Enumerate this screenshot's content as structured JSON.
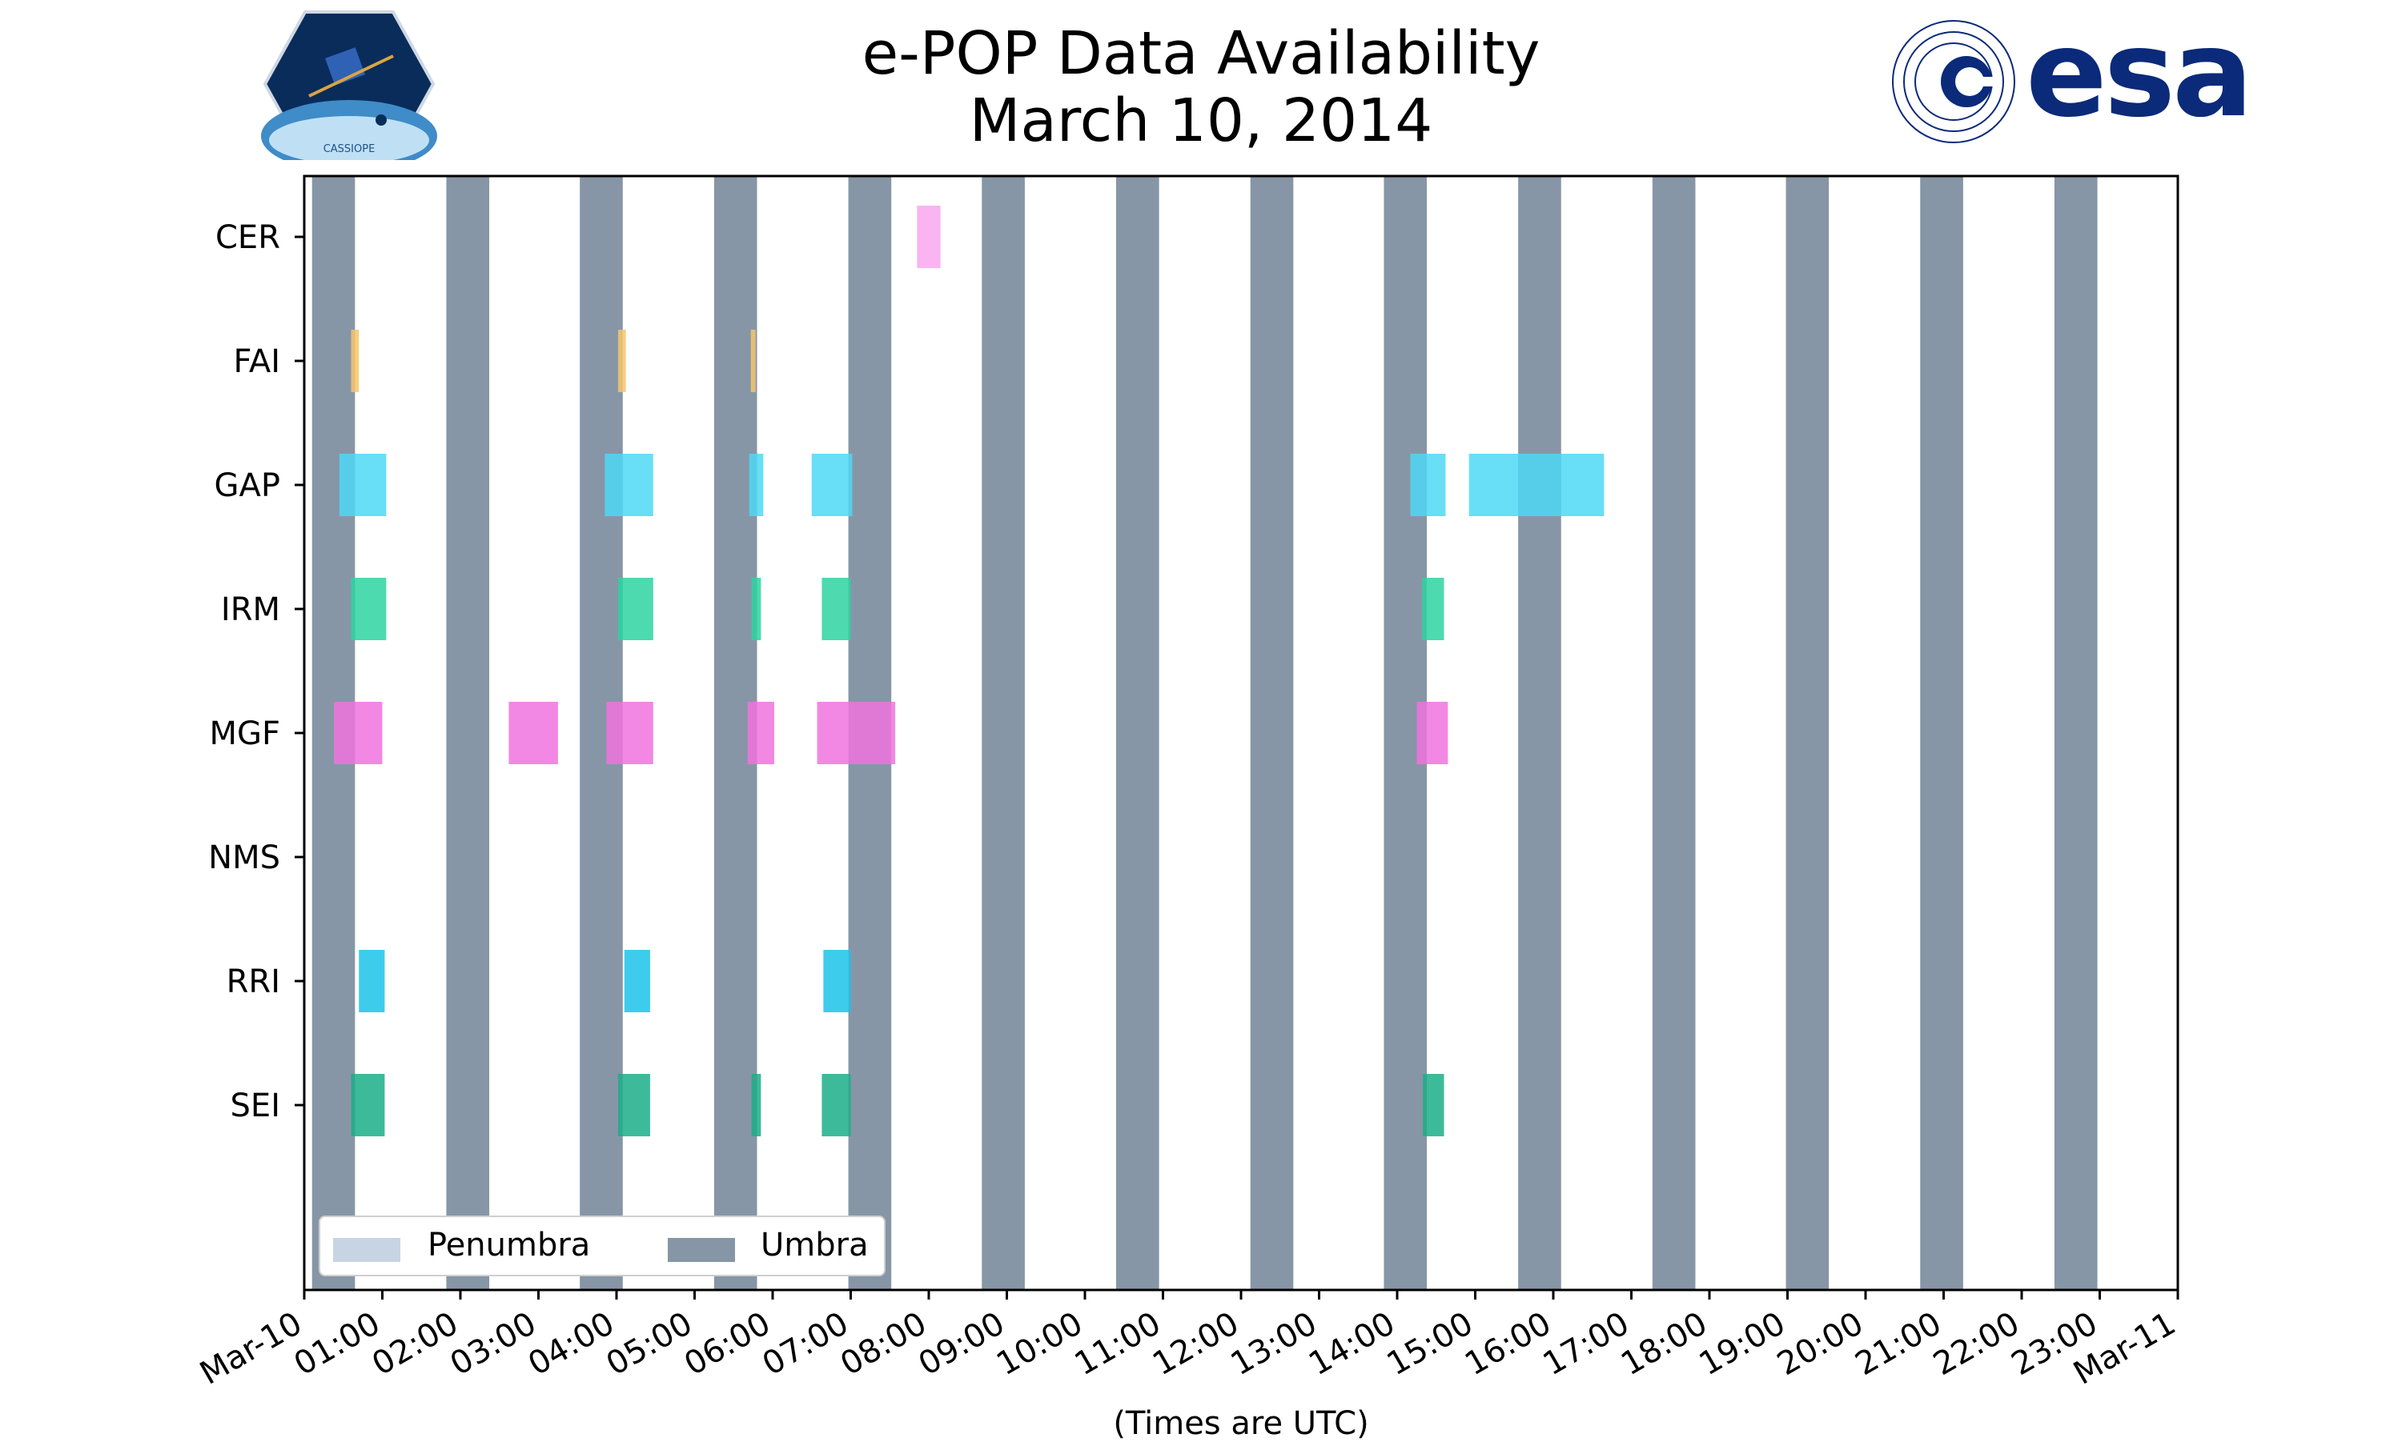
{
  "header": {
    "title_line1": "e-POP Data Availability",
    "title_line2": "March 10, 2014",
    "left_logo_text": "CASSIOPE",
    "right_logo_text": "esa"
  },
  "colors": {
    "umbra": "#8696a6",
    "penumbra": "#c7d4e3",
    "CER": "#f8a7ee",
    "FAI": "#f6c56c",
    "GAP": "#4dd8f6",
    "IRM": "#2dd3a0",
    "MGF": "#f073de",
    "RRI": "#1cc3ea",
    "SEI": "#1bae87"
  },
  "chart_data": {
    "type": "timeline",
    "title": "e-POP Data Availability March 10, 2014",
    "xlabel": "(Times are UTC)",
    "ylabel": "",
    "xlim_hours": [
      0,
      24
    ],
    "xtick_labels": [
      "Mar-10",
      "01:00",
      "02:00",
      "03:00",
      "04:00",
      "05:00",
      "06:00",
      "07:00",
      "08:00",
      "09:00",
      "10:00",
      "11:00",
      "12:00",
      "13:00",
      "14:00",
      "15:00",
      "16:00",
      "17:00",
      "18:00",
      "19:00",
      "20:00",
      "21:00",
      "22:00",
      "23:00",
      "Mar-11"
    ],
    "instruments": [
      "CER",
      "FAI",
      "GAP",
      "IRM",
      "MGF",
      "NMS",
      "RRI",
      "SEI"
    ],
    "legend": {
      "placement": "lower-left",
      "entries": [
        "Penumbra",
        "Umbra"
      ]
    },
    "umbra_intervals_hours": [
      [
        0.1,
        0.65
      ],
      [
        1.82,
        2.37
      ],
      [
        3.53,
        4.08
      ],
      [
        5.25,
        5.8
      ],
      [
        6.97,
        7.52
      ],
      [
        8.68,
        9.23
      ],
      [
        10.4,
        10.95
      ],
      [
        12.12,
        12.67
      ],
      [
        13.83,
        14.38
      ],
      [
        15.55,
        16.1
      ],
      [
        17.27,
        17.82
      ],
      [
        18.98,
        19.53
      ],
      [
        20.7,
        21.25
      ],
      [
        22.42,
        22.97
      ]
    ],
    "series": [
      {
        "name": "CER",
        "intervals_hours": [
          [
            7.85,
            8.15
          ]
        ]
      },
      {
        "name": "FAI",
        "intervals_hours": [
          [
            0.6,
            0.7
          ],
          [
            4.02,
            4.12
          ],
          [
            5.72,
            5.78
          ]
        ]
      },
      {
        "name": "GAP",
        "intervals_hours": [
          [
            0.45,
            1.05
          ],
          [
            3.85,
            4.47
          ],
          [
            5.7,
            5.88
          ],
          [
            6.5,
            7.02
          ],
          [
            14.17,
            14.62
          ],
          [
            14.92,
            16.65
          ]
        ]
      },
      {
        "name": "IRM",
        "intervals_hours": [
          [
            0.6,
            1.05
          ],
          [
            4.02,
            4.47
          ],
          [
            5.73,
            5.85
          ],
          [
            6.63,
            7.0
          ],
          [
            14.32,
            14.6
          ]
        ]
      },
      {
        "name": "MGF",
        "intervals_hours": [
          [
            0.38,
            1.0
          ],
          [
            2.62,
            3.25
          ],
          [
            3.87,
            4.47
          ],
          [
            5.68,
            6.02
          ],
          [
            6.57,
            7.57
          ],
          [
            14.25,
            14.65
          ]
        ]
      },
      {
        "name": "NMS",
        "intervals_hours": []
      },
      {
        "name": "RRI",
        "intervals_hours": [
          [
            0.7,
            1.03
          ],
          [
            4.1,
            4.43
          ],
          [
            6.65,
            7.0
          ]
        ]
      },
      {
        "name": "SEI",
        "intervals_hours": [
          [
            0.6,
            1.03
          ],
          [
            4.02,
            4.43
          ],
          [
            5.73,
            5.85
          ],
          [
            6.63,
            7.0
          ],
          [
            14.33,
            14.6
          ]
        ]
      }
    ]
  }
}
